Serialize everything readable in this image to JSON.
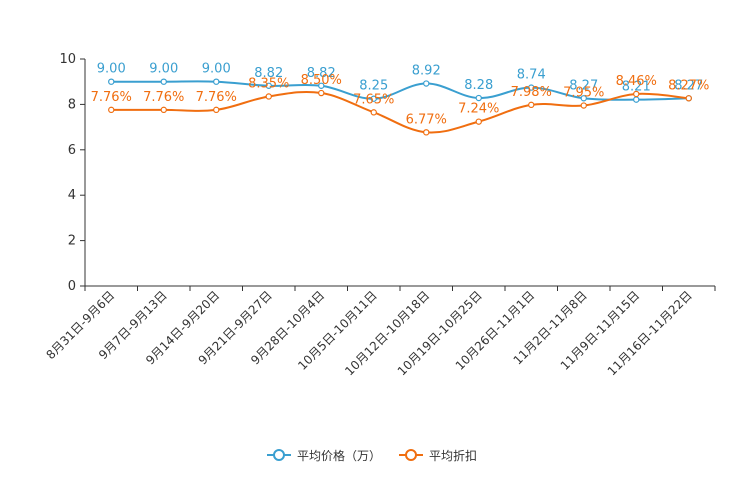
{
  "chart_data": {
    "type": "line",
    "title": "",
    "xlabel": "",
    "ylabel": "",
    "ylim": [
      0,
      10
    ],
    "yticks": [
      0,
      2,
      4,
      6,
      8,
      10
    ],
    "categories": [
      "8月31日-9月6日",
      "9月7日-9月13日",
      "9月14日-9月20日",
      "9月21日-9月27日",
      "9月28日-10月4日",
      "10月5日-10月11日",
      "10月12日-10月18日",
      "10月19日-10月25日",
      "10月26日-11月1日",
      "11月2日-11月8日",
      "11月9日-11月15日",
      "11月16日-11月22日"
    ],
    "series": [
      {
        "name": "平均价格（万）",
        "color": "#3a9fd0",
        "values": [
          9.0,
          9.0,
          9.0,
          8.82,
          8.82,
          8.25,
          8.92,
          8.28,
          8.74,
          8.27,
          8.21,
          8.27
        ],
        "labels": [
          "9.00",
          "9.00",
          "9.00",
          "8.82",
          "8.82",
          "8.25",
          "8.92",
          "8.28",
          "8.74",
          "8.27",
          "8.21",
          "8.27"
        ]
      },
      {
        "name": "平均折扣",
        "color": "#f06e10",
        "values": [
          7.76,
          7.76,
          7.76,
          8.35,
          8.5,
          7.65,
          6.77,
          7.24,
          7.98,
          7.95,
          8.46,
          8.27
        ],
        "labels": [
          "7.76%",
          "7.76%",
          "7.76%",
          "8.35%",
          "8.50%",
          "7.65%",
          "6.77%",
          "7.24%",
          "7.98%",
          "7.95%",
          "8.46%",
          "8.27%"
        ]
      }
    ],
    "legend_position": "bottom-center",
    "grid": false
  }
}
